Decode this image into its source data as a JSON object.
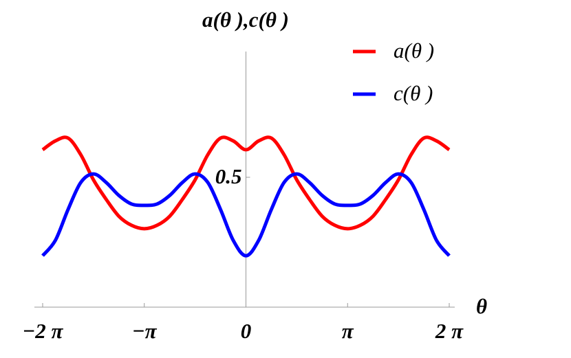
{
  "chart_data": {
    "type": "line",
    "y_label": "a(θ ),c(θ )",
    "x_label": "θ",
    "x": [
      -6.2832,
      -5.8905,
      -5.4978,
      -5.1051,
      -4.7124,
      -4.3197,
      -3.927,
      -3.5343,
      -3.1416,
      -2.7489,
      -2.3562,
      -1.9635,
      -1.5708,
      -1.1781,
      -0.7854,
      -0.3927,
      0,
      0.3927,
      0.7854,
      1.1781,
      1.5708,
      1.9635,
      2.3562,
      2.7489,
      3.1416,
      3.5343,
      3.927,
      4.3197,
      4.7124,
      5.1051,
      5.4978,
      5.8905,
      6.2832
    ],
    "series": [
      {
        "name": "a(θ )",
        "color": "#ff0000",
        "values": [
          0.606,
          0.64,
          0.651,
          0.587,
          0.49,
          0.415,
          0.35,
          0.315,
          0.302,
          0.315,
          0.35,
          0.415,
          0.49,
          0.587,
          0.651,
          0.64,
          0.606,
          0.64,
          0.651,
          0.587,
          0.49,
          0.415,
          0.35,
          0.315,
          0.302,
          0.315,
          0.35,
          0.415,
          0.49,
          0.587,
          0.651,
          0.64,
          0.606
        ]
      },
      {
        "name": "c(θ )",
        "color": "#0000ff",
        "values": [
          0.198,
          0.257,
          0.376,
          0.48,
          0.513,
          0.48,
          0.43,
          0.397,
          0.392,
          0.397,
          0.43,
          0.48,
          0.513,
          0.48,
          0.376,
          0.257,
          0.198,
          0.257,
          0.376,
          0.48,
          0.513,
          0.48,
          0.43,
          0.397,
          0.392,
          0.397,
          0.43,
          0.48,
          0.513,
          0.48,
          0.376,
          0.257,
          0.198
        ]
      }
    ],
    "xlim": [
      -6.2832,
      6.2832
    ],
    "ylim": [
      0,
      1
    ],
    "xticks": [
      {
        "value": -6.2832,
        "label": "−2 π"
      },
      {
        "value": -3.1416,
        "label": "−π"
      },
      0,
      {
        "value": 3.1416,
        "label": "π"
      },
      {
        "value": 6.2832,
        "label": "2 π"
      }
    ],
    "yticks": [
      0.5
    ],
    "legend": "top-right"
  }
}
